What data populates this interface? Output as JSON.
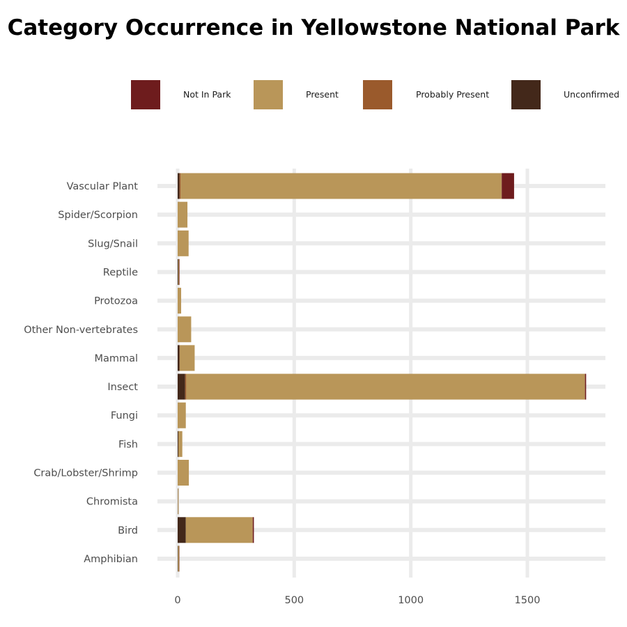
{
  "chart_data": {
    "type": "bar",
    "orientation": "horizontal",
    "stacked": true,
    "title": "Category Occurrence in Yellowstone National Park",
    "xlabel": "",
    "ylabel": "",
    "xlim": [
      0,
      1800
    ],
    "x_ticks": [
      0,
      500,
      1000,
      1500
    ],
    "grid": true,
    "legend_position": "top",
    "categories": [
      "Vascular Plant",
      "Spider/Scorpion",
      "Slug/Snail",
      "Reptile",
      "Protozoa",
      "Other Non-vertebrates",
      "Mammal",
      "Insect",
      "Fungi",
      "Fish",
      "Crab/Lobster/Shrimp",
      "Chromista",
      "Bird",
      "Amphibian"
    ],
    "series": [
      {
        "name": "Unconfirmed",
        "color": "#43281a",
        "values": [
          8,
          0,
          0,
          3,
          0,
          0,
          8,
          32,
          0,
          3,
          0,
          1,
          35,
          2
        ]
      },
      {
        "name": "Probably Present",
        "color": "#9a5a2c",
        "values": [
          5,
          0,
          0,
          0,
          0,
          0,
          1,
          5,
          0,
          0,
          0,
          0,
          0,
          0
        ]
      },
      {
        "name": "Present",
        "color": "#b99659",
        "values": [
          1377,
          42,
          47,
          3,
          15,
          58,
          64,
          1710,
          35,
          17,
          48,
          3,
          287,
          5
        ]
      },
      {
        "name": "Not In Park",
        "color": "#6e1c1d",
        "values": [
          53,
          0,
          0,
          2,
          0,
          0,
          0,
          5,
          0,
          0,
          0,
          0,
          5,
          1
        ]
      }
    ],
    "legend": [
      "Not In Park",
      "Present",
      "Probably Present",
      "Unconfirmed"
    ]
  }
}
